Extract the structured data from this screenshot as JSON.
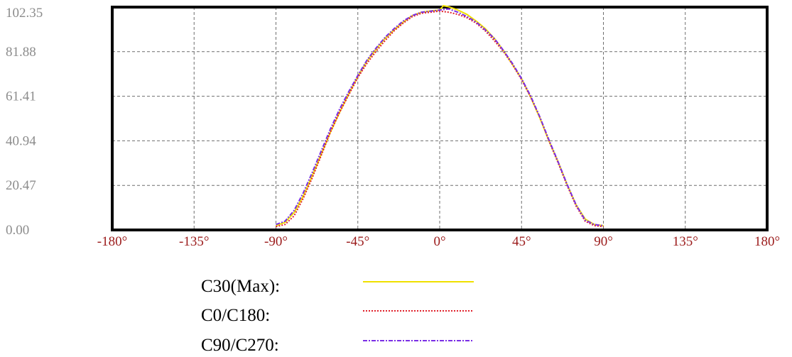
{
  "chart_data": {
    "type": "line",
    "title": "",
    "xlabel": "",
    "ylabel": "",
    "xlim": [
      -180,
      180
    ],
    "ylim": [
      0,
      102.35
    ],
    "x_ticks": [
      "-180°",
      "-135°",
      "-90°",
      "-45°",
      "0°",
      "45°",
      "90°",
      "135°",
      "180°"
    ],
    "x_tick_values": [
      -180,
      -135,
      -90,
      -45,
      0,
      45,
      90,
      135,
      180
    ],
    "y_ticks": [
      "0.00",
      "20.47",
      "40.94",
      "61.41",
      "81.88",
      "102.35"
    ],
    "y_tick_values": [
      0,
      20.47,
      40.94,
      61.41,
      81.88,
      102.35
    ],
    "grid": true,
    "legend_position": "bottom",
    "series": [
      {
        "name": "C30(Max):",
        "color": "#f0e000",
        "dash": "solid",
        "x": [
          -90,
          -85,
          -80,
          -75,
          -70,
          -65,
          -60,
          -55,
          -50,
          -45,
          -40,
          -35,
          -30,
          -25,
          -20,
          -15,
          -10,
          -5,
          0,
          2,
          5,
          10,
          15,
          20,
          25,
          30,
          35,
          40,
          45,
          50,
          55,
          60,
          65,
          70,
          75,
          80,
          85,
          90
        ],
        "y": [
          2,
          3.5,
          8,
          15.5,
          25,
          35,
          45,
          54,
          62.5,
          70.5,
          77.5,
          83,
          88,
          92,
          95.5,
          98.5,
          100,
          100.6,
          101,
          103,
          102.5,
          101,
          99,
          96,
          92.5,
          88,
          82.5,
          76,
          69.5,
          61,
          51.5,
          41,
          31.5,
          21,
          11.5,
          5,
          2.5,
          2
        ]
      },
      {
        "name": "C0/C180:",
        "color": "#e0202a",
        "dash": "dotted",
        "x": [
          -90,
          -85,
          -80,
          -75,
          -70,
          -65,
          -60,
          -55,
          -50,
          -45,
          -40,
          -35,
          -30,
          -25,
          -20,
          -15,
          -10,
          -5,
          0,
          5,
          10,
          15,
          20,
          25,
          30,
          35,
          40,
          45,
          50,
          55,
          60,
          65,
          70,
          75,
          80,
          85,
          90
        ],
        "y": [
          1.5,
          2.5,
          6.5,
          14.5,
          24,
          34.5,
          45,
          54,
          62,
          70,
          76.5,
          82,
          87,
          91.5,
          95,
          98,
          99.5,
          100,
          100.5,
          100,
          99,
          97.5,
          95,
          91.5,
          87,
          82,
          76,
          69,
          61,
          52,
          41,
          31,
          20.5,
          11,
          4,
          2,
          1.5
        ]
      },
      {
        "name": "C90/C270:",
        "color": "#7a2ee6",
        "dash": "dashdot",
        "x": [
          -90,
          -85,
          -80,
          -75,
          -70,
          -65,
          -60,
          -55,
          -50,
          -45,
          -40,
          -35,
          -30,
          -25,
          -20,
          -15,
          -10,
          -5,
          0,
          5,
          10,
          15,
          20,
          25,
          30,
          35,
          40,
          45,
          50,
          55,
          60,
          65,
          70,
          75,
          80,
          85,
          90
        ],
        "y": [
          2.5,
          4,
          9,
          17,
          26.5,
          36.5,
          46.5,
          55.5,
          63.5,
          71,
          78,
          83.5,
          88.5,
          92.5,
          96,
          98.5,
          100,
          100.5,
          101,
          101.5,
          100,
          98,
          95.5,
          92,
          88,
          82.5,
          76.5,
          69.5,
          61.5,
          52,
          41.5,
          31.5,
          21,
          11.5,
          4.5,
          2.5,
          2
        ]
      }
    ]
  }
}
